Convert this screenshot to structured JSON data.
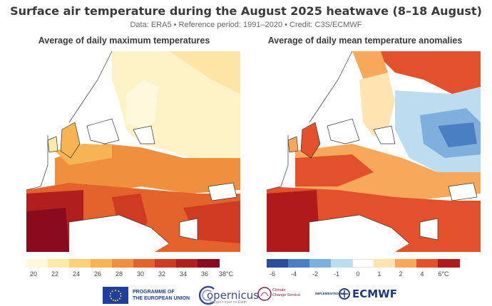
{
  "header": {
    "title": "Surface air temperature during the August 2025 heatwave (8–18 August)",
    "subtitle": "Data: ERA5 • Reference period: 1991–2020 • Credit: C3S/ECMWF"
  },
  "panels": [
    {
      "title": "Average of daily maximum temperatures",
      "colorbar": {
        "ticks": [
          "20",
          "22",
          "24",
          "26",
          "28",
          "30",
          "32",
          "34",
          "36",
          "38°C"
        ],
        "colors": [
          "#fff8dc",
          "#fde9a8",
          "#fbd27a",
          "#f7b455",
          "#f08f3c",
          "#e4632c",
          "#cf3a22",
          "#b01e1e",
          "#8a0a1e"
        ]
      }
    },
    {
      "title": "Average of daily mean temperature anomalies",
      "colorbar": {
        "ticks": [
          "-6",
          "-4",
          "-2",
          "-1",
          "0",
          "1",
          "2",
          "4",
          "6°C"
        ],
        "colors": [
          "#2a4e9b",
          "#4a7fc1",
          "#7fb0dd",
          "#bcdcf0",
          "#ffffff",
          "#fde4b0",
          "#f8a85a",
          "#e2512b",
          "#b01a1a"
        ]
      }
    }
  ],
  "footer": {
    "eu_line1": "PROGRAMME OF",
    "eu_line2": "THE EUROPEAN UNION",
    "copernicus": "opernicus",
    "copernicus_sub": "Europe's eyes on Earth",
    "c3s_line1": "Climate",
    "c3s_line2": "Change Service",
    "implemented": "IMPLEMENTED BY",
    "ecmwf": "ECMWF"
  }
}
